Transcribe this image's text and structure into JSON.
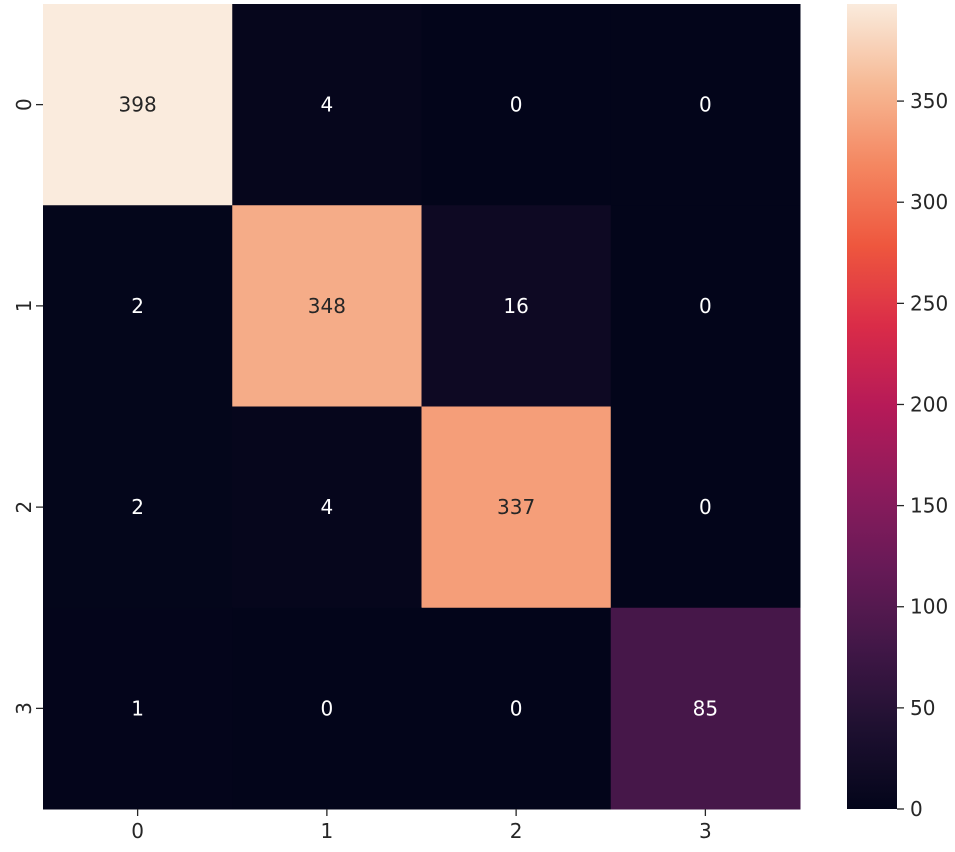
{
  "chart_data": {
    "type": "heatmap",
    "title": "",
    "xlabel": "",
    "ylabel": "",
    "x_categories": [
      "0",
      "1",
      "2",
      "3"
    ],
    "y_categories": [
      "0",
      "1",
      "2",
      "3"
    ],
    "values": [
      [
        398,
        4,
        0,
        0
      ],
      [
        2,
        348,
        16,
        0
      ],
      [
        2,
        4,
        337,
        0
      ],
      [
        1,
        0,
        0,
        85
      ]
    ],
    "annotations": [
      [
        "398",
        "4",
        "0",
        "0"
      ],
      [
        "2",
        "348",
        "16",
        "0"
      ],
      [
        "2",
        "4",
        "337",
        "0"
      ],
      [
        "1",
        "0",
        "0",
        "85"
      ]
    ],
    "colormap": "rocket",
    "vmin": 0,
    "vmax": 398,
    "colorbar": {
      "ticks": [
        0,
        50,
        100,
        150,
        200,
        250,
        300,
        350
      ],
      "tick_labels": [
        "0",
        "50",
        "100",
        "150",
        "200",
        "250",
        "300",
        "350"
      ]
    },
    "annotation_colors": {
      "dark_cell_text": "#ffffff",
      "light_cell_text": "#262626"
    },
    "grid": false,
    "legend": "colorbar-right"
  }
}
